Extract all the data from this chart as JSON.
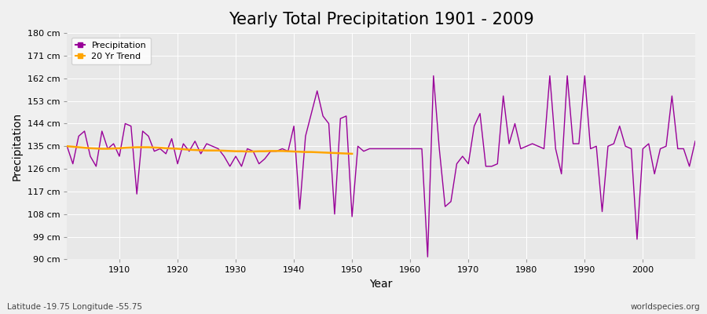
{
  "title": "Yearly Total Precipitation 1901 - 2009",
  "xlabel": "Year",
  "ylabel": "Precipitation",
  "subtitle_left": "Latitude -19.75 Longitude -55.75",
  "subtitle_right": "worldspecies.org",
  "ylim": [
    90,
    180
  ],
  "yticks": [
    90,
    99,
    108,
    117,
    126,
    135,
    144,
    153,
    162,
    171,
    180
  ],
  "ytick_labels": [
    "90 cm",
    "99 cm",
    "108 cm",
    "117 cm",
    "126 cm",
    "135 cm",
    "144 cm",
    "153 cm",
    "162 cm",
    "171 cm",
    "180 cm"
  ],
  "years": [
    1901,
    1902,
    1903,
    1904,
    1905,
    1906,
    1907,
    1908,
    1909,
    1910,
    1911,
    1912,
    1913,
    1914,
    1915,
    1916,
    1917,
    1918,
    1919,
    1920,
    1921,
    1922,
    1923,
    1924,
    1925,
    1926,
    1927,
    1928,
    1929,
    1930,
    1931,
    1932,
    1933,
    1934,
    1935,
    1936,
    1937,
    1938,
    1939,
    1940,
    1941,
    1942,
    1943,
    1944,
    1945,
    1946,
    1947,
    1948,
    1949,
    1950,
    1951,
    1952,
    1953,
    1954,
    1955,
    1956,
    1957,
    1958,
    1959,
    1960,
    1961,
    1962,
    1963,
    1964,
    1965,
    1966,
    1967,
    1968,
    1969,
    1970,
    1971,
    1972,
    1973,
    1974,
    1975,
    1976,
    1977,
    1978,
    1979,
    1980,
    1981,
    1982,
    1983,
    1984,
    1985,
    1986,
    1987,
    1988,
    1989,
    1990,
    1991,
    1992,
    1993,
    1994,
    1995,
    1996,
    1997,
    1998,
    1999,
    2000,
    2001,
    2002,
    2003,
    2004,
    2005,
    2006,
    2007,
    2008,
    2009
  ],
  "precipitation": [
    135,
    128,
    139,
    141,
    131,
    127,
    141,
    134,
    136,
    131,
    144,
    143,
    116,
    141,
    139,
    133,
    134,
    132,
    138,
    128,
    136,
    133,
    137,
    132,
    136,
    135,
    134,
    131,
    127,
    131,
    127,
    134,
    133,
    128,
    130,
    133,
    133,
    134,
    133,
    143,
    110,
    139,
    148,
    157,
    147,
    144,
    108,
    146,
    147,
    107,
    135,
    133,
    134,
    134,
    134,
    134,
    134,
    134,
    134,
    134,
    134,
    134,
    91,
    163,
    134,
    111,
    113,
    128,
    131,
    128,
    143,
    148,
    127,
    127,
    128,
    155,
    136,
    144,
    134,
    135,
    136,
    135,
    134,
    163,
    134,
    124,
    163,
    136,
    136,
    163,
    134,
    135,
    109,
    135,
    136,
    143,
    135,
    134,
    98,
    134,
    136,
    124,
    134,
    135,
    155,
    134,
    134,
    127,
    137
  ],
  "trend_years": [
    1901,
    1902,
    1903,
    1904,
    1905,
    1906,
    1907,
    1908,
    1909,
    1910,
    1911,
    1912,
    1913,
    1914,
    1915,
    1916,
    1917,
    1918,
    1919,
    1920,
    1921,
    1922,
    1923,
    1924,
    1925,
    1926,
    1927,
    1928,
    1929,
    1930,
    1931,
    1932,
    1933,
    1934,
    1935,
    1936,
    1937,
    1938,
    1939,
    1940,
    1941,
    1942,
    1943,
    1944,
    1945,
    1946,
    1947,
    1948,
    1949,
    1950
  ],
  "trend_values": [
    135.0,
    134.8,
    134.6,
    134.4,
    134.2,
    134.1,
    134.0,
    134.0,
    134.1,
    134.2,
    134.4,
    134.5,
    134.6,
    134.6,
    134.6,
    134.5,
    134.4,
    134.2,
    134.1,
    134.0,
    133.8,
    133.6,
    133.5,
    133.4,
    133.3,
    133.3,
    133.3,
    133.2,
    133.1,
    133.0,
    133.0,
    132.9,
    132.9,
    133.0,
    133.0,
    133.1,
    133.1,
    133.1,
    133.0,
    132.9,
    132.8,
    132.7,
    132.7,
    132.6,
    132.5,
    132.4,
    132.3,
    132.2,
    132.1,
    132.0
  ],
  "precip_color": "#990099",
  "trend_color": "#FFA500",
  "bg_color": "#f0f0f0",
  "plot_bg_color": "#e8e8e8",
  "grid_color": "#ffffff",
  "title_fontsize": 15,
  "xticks": [
    1910,
    1920,
    1930,
    1940,
    1950,
    1960,
    1970,
    1980,
    1990,
    2000
  ],
  "xlim_min": 1901,
  "xlim_max": 2009
}
